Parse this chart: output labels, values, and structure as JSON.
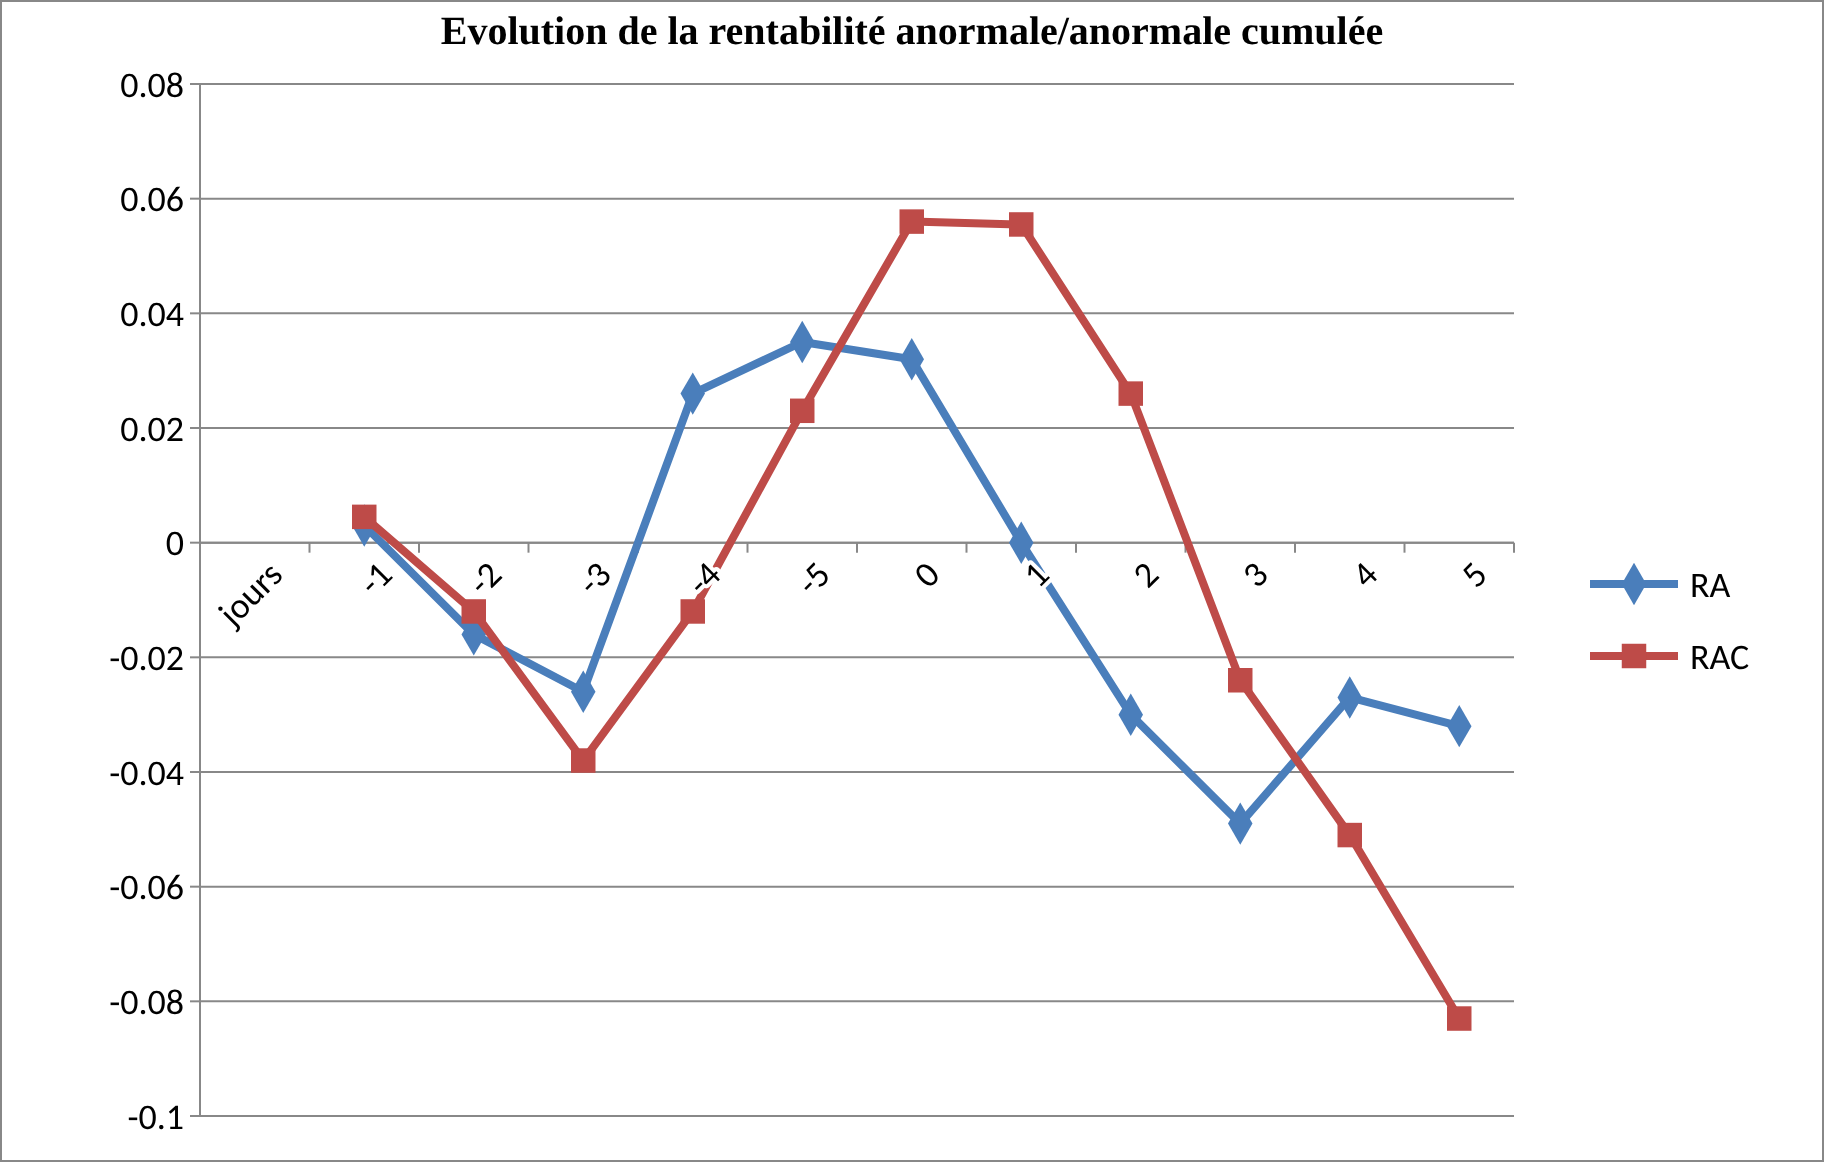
{
  "chart_data": {
    "type": "line",
    "title": "Evolution de la rentabilité anormale/anormale cumulée",
    "categories": [
      "jours",
      "-1",
      "-2",
      "-3",
      "-4",
      "-5",
      "0",
      "1",
      "2",
      "3",
      "4",
      "5"
    ],
    "series": [
      {
        "name": "RA",
        "color": "#4a7ebb",
        "marker": "diamond",
        "values": [
          null,
          0.003,
          -0.016,
          -0.026,
          0.026,
          0.035,
          0.032,
          0,
          -0.03,
          -0.049,
          -0.027,
          -0.032
        ]
      },
      {
        "name": "RAC",
        "color": "#be4b48",
        "marker": "square",
        "values": [
          null,
          0.0045,
          -0.012,
          -0.038,
          -0.012,
          0.023,
          0.056,
          0.0555,
          0.026,
          -0.024,
          -0.051,
          -0.083
        ]
      }
    ],
    "ylim": [
      -0.1,
      0.08
    ],
    "yticks": [
      -0.1,
      -0.08,
      -0.06,
      -0.04,
      -0.02,
      0,
      0.02,
      0.04,
      0.06,
      0.08
    ],
    "grid": "y",
    "legend": "right",
    "line_style": "solid"
  }
}
